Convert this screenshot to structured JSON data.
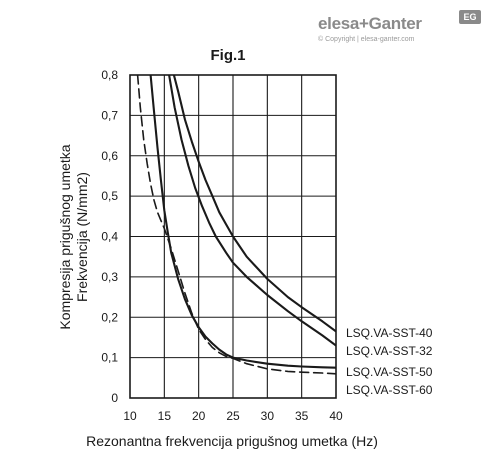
{
  "brand": {
    "name": "elesa+Ganter",
    "badge": "EG",
    "copyright": "© Copyright | elesa-ganter.com"
  },
  "chart_data": {
    "type": "line",
    "title": "Fig.1",
    "xlabel": "Rezonantna frekvencija prigušnog umetka (Hz)",
    "ylabel_lines": [
      "Kompresija prigušnog umetka",
      "Frekvencija (N/mm2)"
    ],
    "xlim": [
      10,
      40
    ],
    "ylim": [
      0,
      0.8
    ],
    "x_ticks": [
      "10",
      "15",
      "20",
      "25",
      "30",
      "35",
      "40"
    ],
    "y_ticks": [
      "0",
      "0,1",
      "0,2",
      "0,3",
      "0,4",
      "0,5",
      "0,6",
      "0,7",
      "0,8"
    ],
    "grid": true,
    "legend_labels": [
      "LSQ.VA-SST-40",
      "LSQ.VA-SST-32",
      "LSQ.VA-SST-50",
      "LSQ.VA-SST-60"
    ],
    "series": [
      {
        "name": "LSQ.VA-SST-40",
        "style": "solid",
        "x": [
          16.4,
          17,
          18,
          19,
          20,
          21,
          22,
          23,
          24,
          25,
          27,
          30,
          33,
          35,
          38,
          40
        ],
        "y": [
          0.8,
          0.76,
          0.69,
          0.635,
          0.585,
          0.54,
          0.5,
          0.46,
          0.43,
          0.4,
          0.35,
          0.295,
          0.25,
          0.225,
          0.19,
          0.165
        ]
      },
      {
        "name": "LSQ.VA-SST-32",
        "style": "solid",
        "x": [
          15.7,
          16.5,
          17.5,
          18.5,
          19.5,
          20.5,
          21.5,
          22.5,
          24,
          25,
          27,
          30,
          33,
          35,
          38,
          40
        ],
        "y": [
          0.8,
          0.72,
          0.64,
          0.575,
          0.52,
          0.475,
          0.435,
          0.4,
          0.36,
          0.335,
          0.3,
          0.255,
          0.215,
          0.19,
          0.155,
          0.13
        ]
      },
      {
        "name": "LSQ.VA-SST-50",
        "style": "solid",
        "x": [
          13,
          13.5,
          14,
          14.5,
          15,
          15.5,
          16,
          17,
          18,
          19,
          20,
          21,
          22,
          23,
          24,
          25,
          27,
          30,
          33,
          35,
          38,
          40
        ],
        "y": [
          0.8,
          0.71,
          0.62,
          0.54,
          0.465,
          0.41,
          0.36,
          0.295,
          0.245,
          0.205,
          0.175,
          0.152,
          0.135,
          0.12,
          0.108,
          0.1,
          0.093,
          0.085,
          0.08,
          0.078,
          0.076,
          0.075
        ]
      },
      {
        "name": "LSQ.VA-SST-60",
        "style": "dashed",
        "x": [
          11.1,
          11.5,
          12,
          12.5,
          13,
          13.5,
          14,
          14.5,
          15,
          16,
          17,
          18,
          19,
          20,
          21,
          22,
          23,
          24,
          25,
          27,
          30,
          33,
          35,
          38,
          40
        ],
        "y": [
          0.8,
          0.72,
          0.64,
          0.58,
          0.53,
          0.49,
          0.46,
          0.44,
          0.42,
          0.37,
          0.315,
          0.26,
          0.21,
          0.17,
          0.145,
          0.125,
          0.112,
          0.103,
          0.098,
          0.085,
          0.072,
          0.066,
          0.064,
          0.062,
          0.06
        ]
      }
    ]
  }
}
